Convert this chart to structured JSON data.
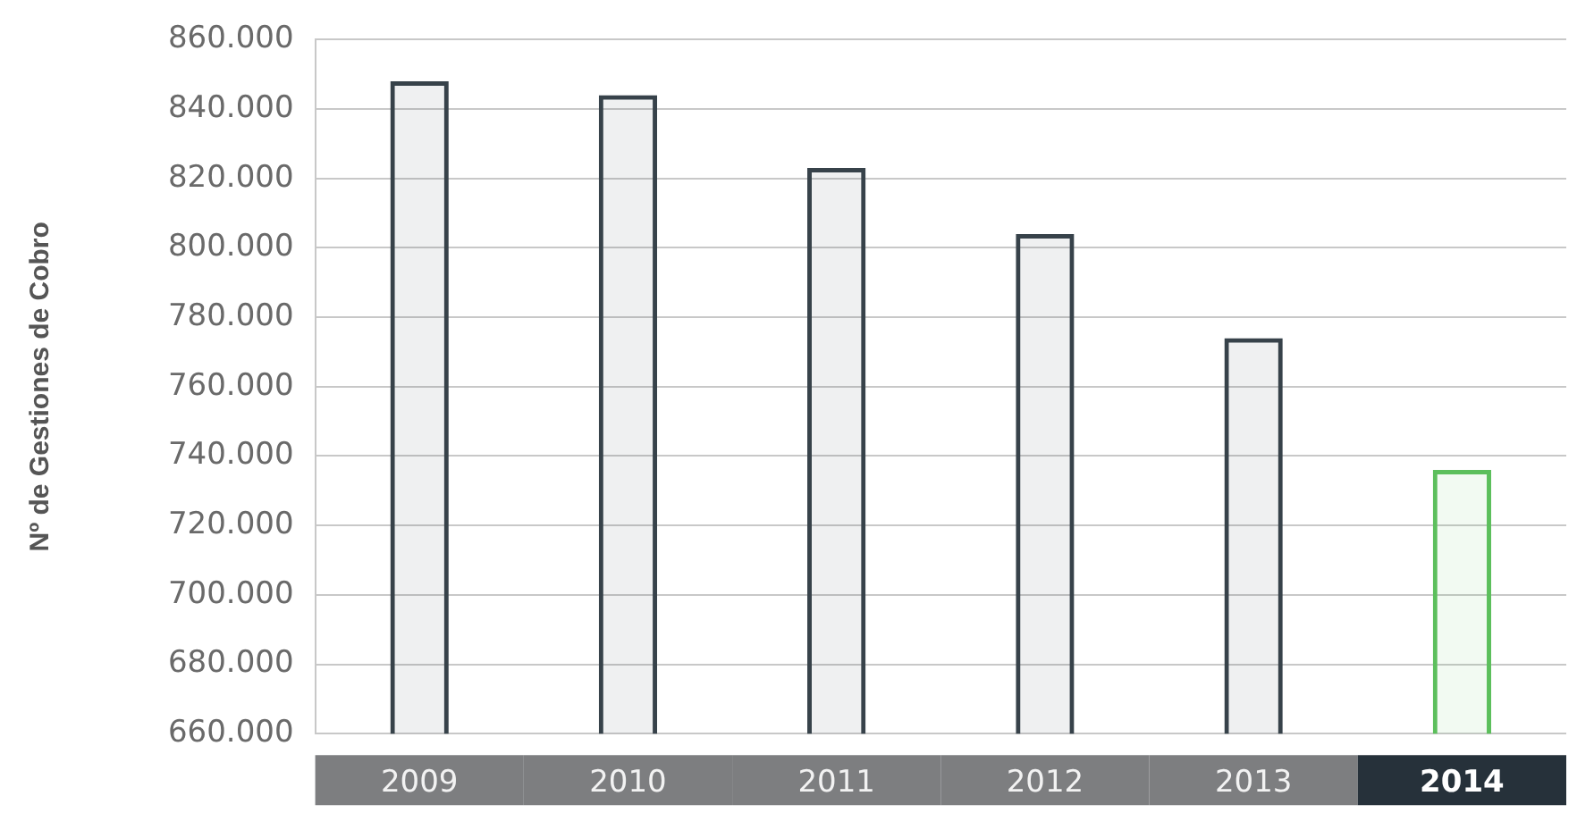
{
  "chart_data": {
    "type": "bar",
    "ylabel": "Nº de Gestiones de Cobro",
    "categories": [
      "2009",
      "2010",
      "2011",
      "2012",
      "2013",
      "2014"
    ],
    "values": [
      848000,
      844000,
      823000,
      804000,
      774000,
      736000
    ],
    "colors": [
      "#37424a",
      "#37424a",
      "#37424a",
      "#37424a",
      "#37424a",
      "#5cbf5c"
    ],
    "ylim": [
      660000,
      860000
    ],
    "yticks": [
      {
        "value": 660000,
        "label": "660.000"
      },
      {
        "value": 680000,
        "label": "680.000"
      },
      {
        "value": 700000,
        "label": "700.000"
      },
      {
        "value": 720000,
        "label": "720.000"
      },
      {
        "value": 740000,
        "label": "740.000"
      },
      {
        "value": 760000,
        "label": "760.000"
      },
      {
        "value": 780000,
        "label": "780.000"
      },
      {
        "value": 800000,
        "label": "800.000"
      },
      {
        "value": 820000,
        "label": "820.000"
      },
      {
        "value": 840000,
        "label": "840.000"
      },
      {
        "value": 860000,
        "label": "860.000"
      }
    ],
    "grid": "y",
    "legend": false
  }
}
